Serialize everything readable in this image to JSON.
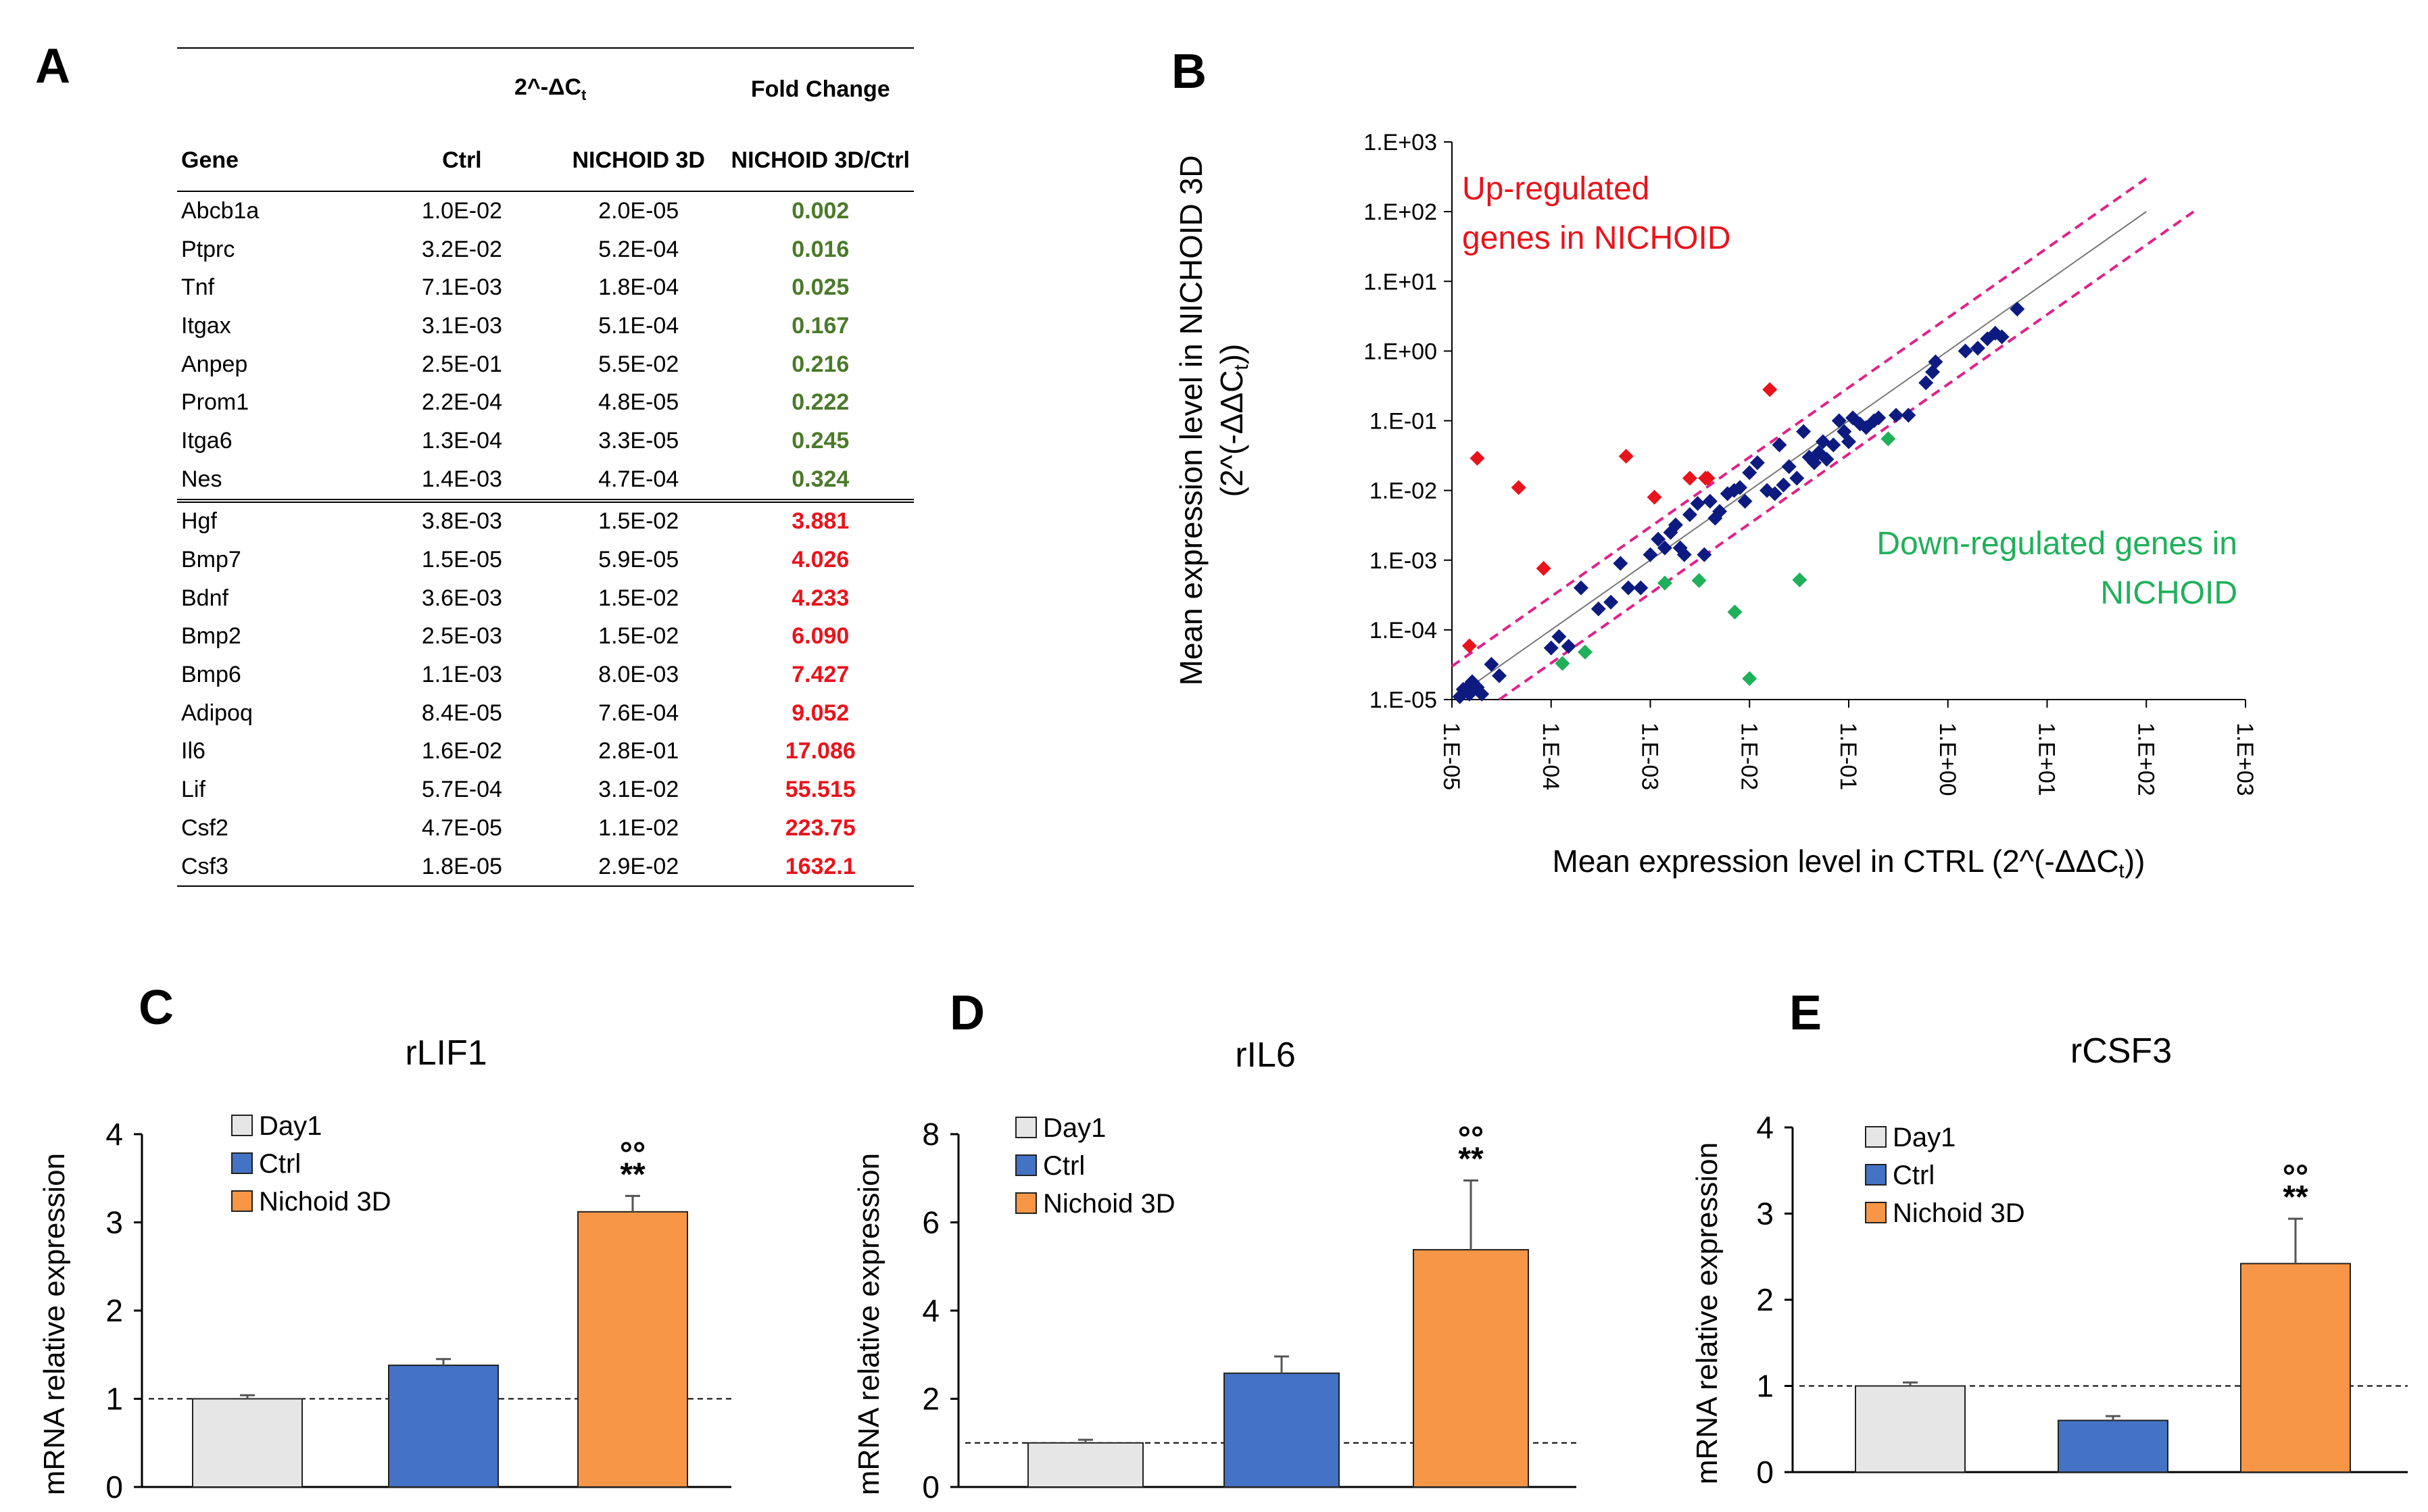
{
  "panels": {
    "a": "A",
    "b": "B",
    "c": "C",
    "d": "D",
    "e": "E"
  },
  "table": {
    "group_header": "2^-ΔC",
    "group_header_sub": "t",
    "fold_header": "Fold Change",
    "col_gene": "Gene",
    "col_ctrl": "Ctrl",
    "col_nichoid": "NICHOID 3D",
    "col_ratio": "NICHOID 3D/Ctrl",
    "rows_down": [
      {
        "gene": "Abcb1a",
        "ctrl": "1.0E-02",
        "nichoid": "2.0E-05",
        "fc": "0.002"
      },
      {
        "gene": "Ptprc",
        "ctrl": "3.2E-02",
        "nichoid": "5.2E-04",
        "fc": "0.016"
      },
      {
        "gene": "Tnf",
        "ctrl": "7.1E-03",
        "nichoid": "1.8E-04",
        "fc": "0.025"
      },
      {
        "gene": "Itgax",
        "ctrl": "3.1E-03",
        "nichoid": "5.1E-04",
        "fc": "0.167"
      },
      {
        "gene": "Anpep",
        "ctrl": "2.5E-01",
        "nichoid": "5.5E-02",
        "fc": "0.216"
      },
      {
        "gene": "Prom1",
        "ctrl": "2.2E-04",
        "nichoid": "4.8E-05",
        "fc": "0.222"
      },
      {
        "gene": "Itga6",
        "ctrl": "1.3E-04",
        "nichoid": "3.3E-05",
        "fc": "0.245"
      },
      {
        "gene": "Nes",
        "ctrl": "1.4E-03",
        "nichoid": "4.7E-04",
        "fc": "0.324"
      }
    ],
    "rows_up": [
      {
        "gene": "Hgf",
        "ctrl": "3.8E-03",
        "nichoid": "1.5E-02",
        "fc": "3.881"
      },
      {
        "gene": "Bmp7",
        "ctrl": "1.5E-05",
        "nichoid": "5.9E-05",
        "fc": "4.026"
      },
      {
        "gene": "Bdnf",
        "ctrl": "3.6E-03",
        "nichoid": "1.5E-02",
        "fc": "4.233"
      },
      {
        "gene": "Bmp2",
        "ctrl": "2.5E-03",
        "nichoid": "1.5E-02",
        "fc": "6.090"
      },
      {
        "gene": "Bmp6",
        "ctrl": "1.1E-03",
        "nichoid": "8.0E-03",
        "fc": "7.427"
      },
      {
        "gene": "Adipoq",
        "ctrl": "8.4E-05",
        "nichoid": "7.6E-04",
        "fc": "9.052"
      },
      {
        "gene": "Il6",
        "ctrl": "1.6E-02",
        "nichoid": "2.8E-01",
        "fc": "17.086"
      },
      {
        "gene": "Lif",
        "ctrl": "5.7E-04",
        "nichoid": "3.1E-02",
        "fc": "55.515"
      },
      {
        "gene": "Csf2",
        "ctrl": "4.7E-05",
        "nichoid": "1.1E-02",
        "fc": "223.75"
      },
      {
        "gene": "Csf3",
        "ctrl": "1.8E-05",
        "nichoid": "2.9E-02",
        "fc": "1632.1"
      }
    ]
  },
  "colors": {
    "down_text": "#4a7a2a",
    "up_text": "#e8141c",
    "point_neutral": "#0d1b80",
    "point_up": "#e8141c",
    "point_down": "#1fb05a",
    "threshold_line": "#e0228a",
    "identity_line": "#777777",
    "bar_day1": "#e6e6e6",
    "bar_ctrl": "#4472c4",
    "bar_nichoid": "#f79646"
  },
  "chart_data": [
    {
      "type": "scatter",
      "panel": "B",
      "xlabel": "Mean expression level in CTRL (2^(-ΔΔC",
      "xlabel_sub": "t",
      "xlabel_end": "))",
      "ylabel_line1": "Mean expression level in NICHOID 3D",
      "ylabel_line2": "(2^(-ΔΔC",
      "ylabel_sub": "t",
      "ylabel_end": "))",
      "x_scale": "log10",
      "y_scale": "log10",
      "xlim": [
        1e-05,
        1000
      ],
      "ylim": [
        1e-05,
        1000
      ],
      "x_ticks": [
        "1.E-05",
        "1.E-04",
        "1.E-03",
        "1.E-02",
        "1.E-01",
        "1.E+00",
        "1.E+01",
        "1.E+02",
        "1.E+03"
      ],
      "y_ticks": [
        "1.E-05",
        "1.E-04",
        "1.E-03",
        "1.E-02",
        "1.E-01",
        "1.E+00",
        "1.E+01",
        "1.E+02",
        "1.E+03"
      ],
      "annotation_up_line1": "Up-regulated",
      "annotation_up_line2": "genes in NICHOID",
      "annotation_down_line1": "Down-regulated genes in",
      "annotation_down_line2": "NICHOID",
      "threshold_fold": 3,
      "up": [
        {
          "x": 1.8e-05,
          "y": 0.029
        },
        {
          "x": 4.7e-05,
          "y": 0.011
        },
        {
          "x": 0.00057,
          "y": 0.031
        },
        {
          "x": 0.016,
          "y": 0.28
        },
        {
          "x": 1.5e-05,
          "y": 5.9e-05
        },
        {
          "x": 8.4e-05,
          "y": 0.00076
        },
        {
          "x": 0.0011,
          "y": 0.008
        },
        {
          "x": 0.0025,
          "y": 0.015
        },
        {
          "x": 0.0036,
          "y": 0.015
        },
        {
          "x": 0.0038,
          "y": 0.015
        }
      ],
      "down": [
        {
          "x": 0.01,
          "y": 2e-05
        },
        {
          "x": 0.032,
          "y": 0.00052
        },
        {
          "x": 0.0071,
          "y": 0.00018
        },
        {
          "x": 0.0031,
          "y": 0.00051
        },
        {
          "x": 0.25,
          "y": 0.055
        },
        {
          "x": 0.00022,
          "y": 4.8e-05
        },
        {
          "x": 0.00013,
          "y": 3.3e-05
        },
        {
          "x": 0.0014,
          "y": 0.00047
        }
      ],
      "neutral": [
        {
          "x": 1.2e-05,
          "y": 1.1e-05
        },
        {
          "x": 1.3e-05,
          "y": 1.4e-05
        },
        {
          "x": 1.5e-05,
          "y": 1.2e-05
        },
        {
          "x": 1.6e-05,
          "y": 1.8e-05
        },
        {
          "x": 1.8e-05,
          "y": 1.5e-05
        },
        {
          "x": 2e-05,
          "y": 1.2e-05
        },
        {
          "x": 2.5e-05,
          "y": 3.2e-05
        },
        {
          "x": 3e-05,
          "y": 2.2e-05
        },
        {
          "x": 1.5e-05,
          "y": 1.6e-05
        },
        {
          "x": 0.0001,
          "y": 5.5e-05
        },
        {
          "x": 0.00012,
          "y": 8e-05
        },
        {
          "x": 0.00015,
          "y": 5.8e-05
        },
        {
          "x": 0.0002,
          "y": 0.0004
        },
        {
          "x": 0.0003,
          "y": 0.0002
        },
        {
          "x": 0.0004,
          "y": 0.00025
        },
        {
          "x": 0.0006,
          "y": 0.0004
        },
        {
          "x": 0.0008,
          "y": 0.0004
        },
        {
          "x": 0.001,
          "y": 0.0012
        },
        {
          "x": 0.0012,
          "y": 0.002
        },
        {
          "x": 0.0014,
          "y": 0.0015
        },
        {
          "x": 0.0016,
          "y": 0.0025
        },
        {
          "x": 0.0018,
          "y": 0.0032
        },
        {
          "x": 0.002,
          "y": 0.0015
        },
        {
          "x": 0.0022,
          "y": 0.0012
        },
        {
          "x": 0.0025,
          "y": 0.0045
        },
        {
          "x": 0.003,
          "y": 0.0065
        },
        {
          "x": 0.0035,
          "y": 0.0012
        },
        {
          "x": 0.004,
          "y": 0.007
        },
        {
          "x": 0.005,
          "y": 0.005
        },
        {
          "x": 0.006,
          "y": 0.009
        },
        {
          "x": 0.007,
          "y": 0.01
        },
        {
          "x": 0.008,
          "y": 0.011
        },
        {
          "x": 0.009,
          "y": 0.007
        },
        {
          "x": 0.01,
          "y": 0.018
        },
        {
          "x": 0.012,
          "y": 0.025
        },
        {
          "x": 0.015,
          "y": 0.01
        },
        {
          "x": 0.018,
          "y": 0.009
        },
        {
          "x": 0.02,
          "y": 0.045
        },
        {
          "x": 0.022,
          "y": 0.012
        },
        {
          "x": 0.025,
          "y": 0.022
        },
        {
          "x": 0.03,
          "y": 0.015
        },
        {
          "x": 0.035,
          "y": 0.07
        },
        {
          "x": 0.04,
          "y": 0.03
        },
        {
          "x": 0.045,
          "y": 0.025
        },
        {
          "x": 0.05,
          "y": 0.035
        },
        {
          "x": 0.06,
          "y": 0.028
        },
        {
          "x": 0.07,
          "y": 0.045
        },
        {
          "x": 0.08,
          "y": 0.1
        },
        {
          "x": 0.09,
          "y": 0.07
        },
        {
          "x": 0.1,
          "y": 0.05
        },
        {
          "x": 0.11,
          "y": 0.11
        },
        {
          "x": 0.13,
          "y": 0.09
        },
        {
          "x": 0.15,
          "y": 0.08
        },
        {
          "x": 0.18,
          "y": 0.1
        },
        {
          "x": 0.2,
          "y": 0.11
        },
        {
          "x": 0.3,
          "y": 0.12
        },
        {
          "x": 0.4,
          "y": 0.12
        },
        {
          "x": 0.6,
          "y": 0.35
        },
        {
          "x": 0.7,
          "y": 0.5
        },
        {
          "x": 0.75,
          "y": 0.7
        },
        {
          "x": 1.5,
          "y": 1.0
        },
        {
          "x": 2.0,
          "y": 1.1
        },
        {
          "x": 2.5,
          "y": 1.5
        },
        {
          "x": 3.0,
          "y": 1.8
        },
        {
          "x": 3.5,
          "y": 1.6
        },
        {
          "x": 5.0,
          "y": 4.0
        },
        {
          "x": 0.0005,
          "y": 0.0009
        },
        {
          "x": 0.0045,
          "y": 0.004
        },
        {
          "x": 0.055,
          "y": 0.05
        }
      ]
    },
    {
      "type": "bar",
      "panel": "C",
      "title": "rLIF1",
      "ylabel": "mRNA relative expression",
      "ylim": [
        0,
        4
      ],
      "y_ticks": [
        "0",
        "1",
        "2",
        "3",
        "4"
      ],
      "reference_line": 1,
      "categories": [
        "Day1",
        "Ctrl",
        "Nichoid 3D"
      ],
      "values": [
        1.0,
        1.38,
        3.12
      ],
      "errors": [
        0.04,
        0.07,
        0.18
      ],
      "significance": {
        "circles": "°°",
        "stars": "**"
      }
    },
    {
      "type": "bar",
      "panel": "D",
      "title": "rIL6",
      "ylabel": "mRNA relative expression",
      "ylim": [
        0,
        8
      ],
      "y_ticks": [
        "0",
        "2",
        "4",
        "6",
        "8"
      ],
      "reference_line": 1,
      "categories": [
        "Day1",
        "Ctrl",
        "Nichoid 3D"
      ],
      "values": [
        1.0,
        2.58,
        5.38
      ],
      "errors": [
        0.07,
        0.38,
        1.57
      ],
      "significance": {
        "circles": "°°",
        "stars": "**"
      }
    },
    {
      "type": "bar",
      "panel": "E",
      "title": "rCSF3",
      "ylabel": "mRNA relative expression",
      "ylim": [
        0,
        4
      ],
      "y_ticks": [
        "0",
        "1",
        "2",
        "3",
        "4"
      ],
      "reference_line": 1,
      "categories": [
        "Day1",
        "Ctrl",
        "Nichoid 3D"
      ],
      "values": [
        1.0,
        0.6,
        2.42
      ],
      "errors": [
        0.04,
        0.05,
        0.52
      ],
      "significance": {
        "circles": "°°",
        "stars": "**"
      }
    }
  ]
}
